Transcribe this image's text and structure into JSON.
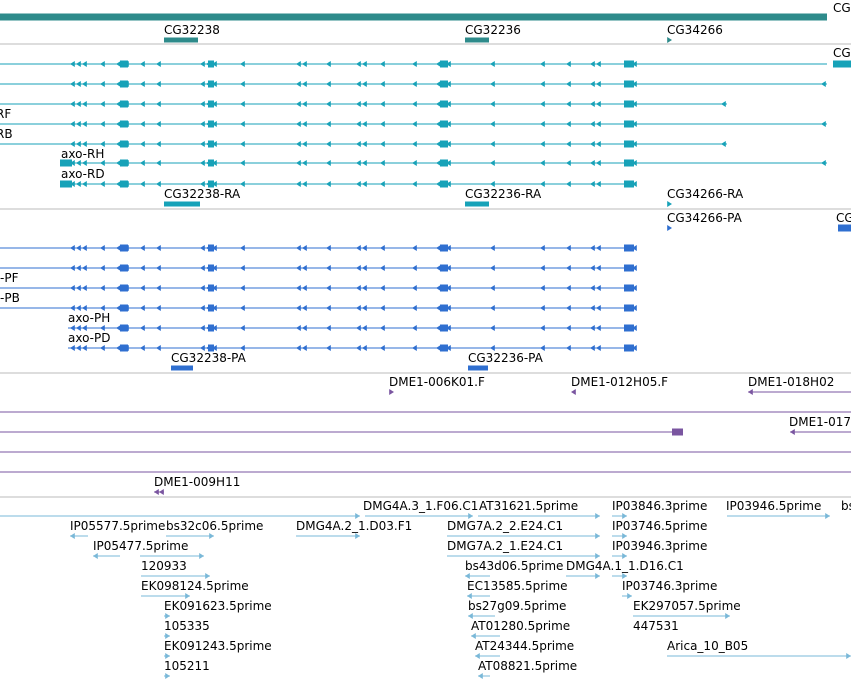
{
  "colors": {
    "gene": "#2e8b8b",
    "mrna": "#17a2b8",
    "protein": "#2f6fd0",
    "clone": "#7a55a0",
    "est": "#7ab8d8",
    "divider": "#bbbbbb"
  },
  "tracks": {
    "genes": {
      "labels": [
        "CG",
        "CG32238",
        "CG32236",
        "CG34266"
      ]
    },
    "transcripts": {
      "labels": [
        "CG",
        "RF",
        "RB",
        "axo-RH",
        "axo-RD",
        "CG32238-RA",
        "CG32236-RA",
        "CG34266-RA"
      ]
    },
    "proteins": {
      "labels": [
        "CG34266-PA",
        "CG",
        "-PF",
        "-PB",
        "axo-PH",
        "axo-PD",
        "CG32238-PA",
        "CG32236-PA"
      ]
    },
    "clones": {
      "labels": [
        "DME1-006K01.F",
        "DME1-012H05.F",
        "DME1-018H02",
        "DME1-017",
        "DME1-009H11"
      ]
    },
    "ests": {
      "labels": [
        "DMG4A.3_1.F06.C1",
        "AT31621.5prime",
        "IP03846.3prime",
        "IP03946.5prime",
        "bs",
        "IP05577.5prime",
        "bs32c06.5prime",
        "DMG4A.2_1.D03.F1",
        "DMG7A.2_2.E24.C1",
        "IP03746.5prime",
        "IP05477.5prime",
        "DMG7A.2_1.E24.C1",
        "IP03946.3prime",
        "120933",
        "bs43d06.5prime",
        "DMG4A.1_1.D16.C1",
        "EK098124.5prime",
        "EC13585.5prime",
        "IP03746.3prime",
        "EK091623.5prime",
        "bs27g09.5prime",
        "EK297057.5prime",
        "105335",
        "AT01280.5prime",
        "447531",
        "EK091243.5prime",
        "AT24344.5prime",
        "Arica_10_B05",
        "105211",
        "AT08821.5prime"
      ]
    }
  }
}
